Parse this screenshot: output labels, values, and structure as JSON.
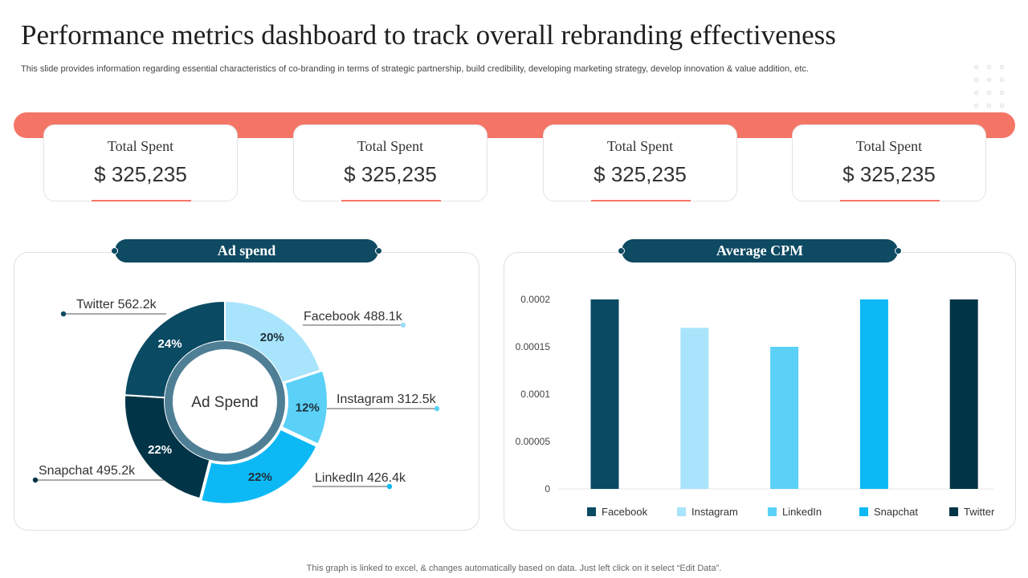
{
  "title": "Performance metrics dashboard to track overall rebranding effectiveness",
  "subtitle": "This slide provides information regarding essential characteristics of co-branding in terms of strategic partnership, build credibility, developing marketing strategy, develop innovation & value addition, etc.",
  "cards": [
    {
      "label": "Total Spent",
      "value": "$ 325,235"
    },
    {
      "label": "Total Spent",
      "value": "$ 325,235"
    },
    {
      "label": "Total Spent",
      "value": "$ 325,235"
    },
    {
      "label": "Total Spent",
      "value": "$ 325,235"
    }
  ],
  "ad_spend": {
    "header": "Ad spend"
  },
  "cpm": {
    "header": "Average CPM"
  },
  "footer": "This graph is linked to excel, & changes automatically based on data. Just left click on it select “Edit Data”.",
  "colors": {
    "accent": "#f47566",
    "navy": "#0e4a62",
    "facebook": "#a8e4fb",
    "instagram": "#5bd1f7",
    "linkedin": "#0cb9f5",
    "snapchat": "#023447",
    "twitter": "#0a4a63"
  },
  "chart_data": [
    {
      "type": "pie",
      "title": "Ad spend",
      "center_label": "Ad Spend",
      "slices": [
        {
          "name": "Facebook",
          "value_label": "488.1k",
          "percent": 20,
          "percent_label": "20%",
          "color": "#a8e4fb"
        },
        {
          "name": "Instagram",
          "value_label": "312.5k",
          "percent": 12,
          "percent_label": "12%",
          "color": "#5bd1f7"
        },
        {
          "name": "LinkedIn",
          "value_label": "426.4k",
          "percent": 22,
          "percent_label": "22%",
          "color": "#0cb9f5"
        },
        {
          "name": "Snapchat",
          "value_label": "495.2k",
          "percent": 22,
          "percent_label": "22%",
          "color": "#023447"
        },
        {
          "name": "Twitter",
          "value_label": "562.2k",
          "percent": 24,
          "percent_label": "24%",
          "color": "#0a4a63"
        }
      ]
    },
    {
      "type": "bar",
      "title": "Average CPM",
      "categories": [
        "Facebook",
        "Instagram",
        "LinkedIn",
        "Snapchat",
        "Twitter"
      ],
      "values": [
        0.0002,
        0.00017,
        0.00015,
        0.0002,
        0.0002
      ],
      "colors": [
        "#0a4a63",
        "#a8e4fb",
        "#5bd1f7",
        "#0cb9f5",
        "#023447"
      ],
      "ylim": [
        0,
        0.0002
      ],
      "yticks": [
        "0",
        "0.00005",
        "0.0001",
        "0.00015",
        "0.0002"
      ],
      "ytick_values": [
        0,
        5e-05,
        0.0001,
        0.00015,
        0.0002
      ],
      "legend": [
        "Facebook",
        "Instagram",
        "LinkedIn",
        "Snapchat",
        "Twitter"
      ]
    }
  ]
}
